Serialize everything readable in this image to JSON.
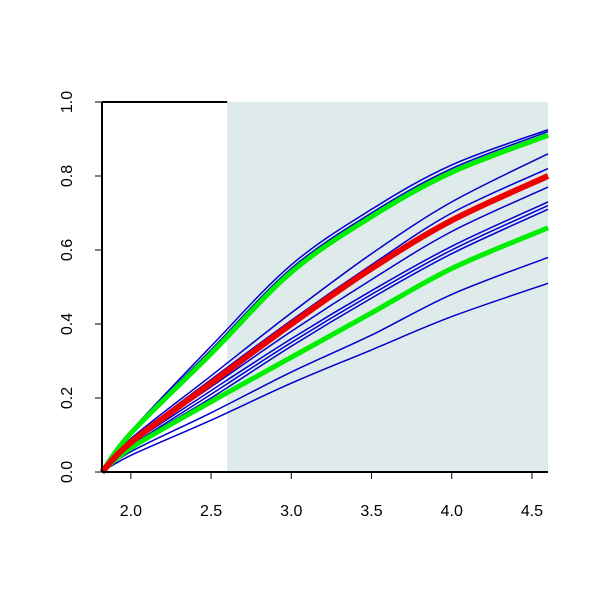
{
  "chart_data": {
    "type": "line",
    "x": [
      1.82,
      2.0,
      2.5,
      3.0,
      3.5,
      4.0,
      4.6
    ],
    "xlim": [
      1.82,
      4.6
    ],
    "ylim": [
      0,
      1
    ],
    "xticks": [
      {
        "value": 2.0,
        "label": "2.0"
      },
      {
        "value": 2.5,
        "label": "2.5"
      },
      {
        "value": 3.0,
        "label": "3.0"
      },
      {
        "value": 3.5,
        "label": "3.5"
      },
      {
        "value": 4.0,
        "label": "4.0"
      },
      {
        "value": 4.5,
        "label": "4.5"
      }
    ],
    "yticks": [
      {
        "value": 0,
        "label": "0.0"
      },
      0.2,
      0.4,
      0.6,
      0.8,
      {
        "value": 1,
        "label": "1.0"
      }
    ],
    "shaded_region": [
      2.6,
      4.6
    ],
    "shade_color": "#dfeaea",
    "series": [
      {
        "color": "#0000cc",
        "width": 1.5,
        "values": [
          0,
          0.11,
          0.34,
          0.56,
          0.71,
          0.83,
          0.925
        ]
      },
      {
        "color": "#0000cc",
        "width": 1.5,
        "values": [
          0,
          0.11,
          0.33,
          0.55,
          0.7,
          0.82,
          0.92
        ]
      },
      {
        "color": "#0000cc",
        "width": 1.5,
        "values": [
          0,
          0.09,
          0.26,
          0.43,
          0.59,
          0.73,
          0.86
        ]
      },
      {
        "color": "#0000cc",
        "width": 1.5,
        "values": [
          0,
          0.085,
          0.25,
          0.41,
          0.56,
          0.7,
          0.82
        ]
      },
      {
        "color": "#0000cc",
        "width": 1.5,
        "values": [
          0,
          0.08,
          0.23,
          0.38,
          0.52,
          0.65,
          0.77
        ]
      },
      {
        "color": "#0000cc",
        "width": 1.5,
        "values": [
          0,
          0.075,
          0.22,
          0.36,
          0.49,
          0.61,
          0.73
        ]
      },
      {
        "color": "#0000cc",
        "width": 1.5,
        "values": [
          0,
          0.07,
          0.21,
          0.35,
          0.48,
          0.6,
          0.72
        ]
      },
      {
        "color": "#0000cc",
        "width": 1.5,
        "values": [
          0,
          0.07,
          0.2,
          0.34,
          0.47,
          0.59,
          0.71
        ]
      },
      {
        "color": "#0000cc",
        "width": 1.5,
        "values": [
          0,
          0.055,
          0.16,
          0.27,
          0.37,
          0.48,
          0.58
        ]
      },
      {
        "color": "#0000cc",
        "width": 1.5,
        "values": [
          0,
          0.045,
          0.14,
          0.24,
          0.33,
          0.42,
          0.51
        ]
      },
      {
        "color": "#00ee00",
        "width": 5,
        "values": [
          0,
          0.105,
          0.32,
          0.54,
          0.69,
          0.81,
          0.91
        ]
      },
      {
        "color": "#00ee00",
        "width": 5,
        "values": [
          0,
          0.065,
          0.19,
          0.31,
          0.43,
          0.55,
          0.66
        ]
      },
      {
        "color": "#ee0000",
        "width": 6,
        "values": [
          0,
          0.08,
          0.24,
          0.4,
          0.55,
          0.68,
          0.8
        ]
      }
    ]
  }
}
